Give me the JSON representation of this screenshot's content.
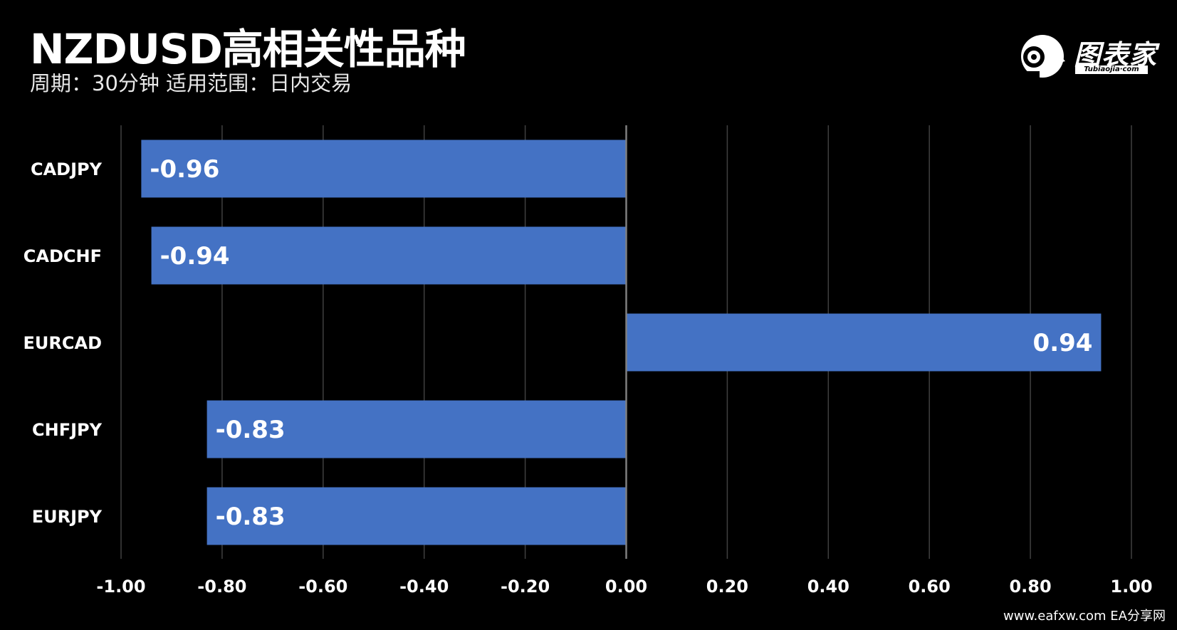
{
  "header": {
    "title": "NZDUSD高相关性品种",
    "subtitle": "周期：30分钟  适用范围：日内交易"
  },
  "logo": {
    "name": "图表家",
    "sub": "Tubiaojia·com",
    "icon": "robot-head-icon"
  },
  "watermark": "www.eafxw.com   EA分享网",
  "colors": {
    "background": "#000000",
    "bar": "#4472C4",
    "grid": "#404040",
    "zero_line": "#7f7f7f",
    "text": "#ffffff"
  },
  "chart_data": {
    "type": "bar",
    "orientation": "horizontal",
    "categories": [
      "CADJPY",
      "CADCHF",
      "EURCAD",
      "CHFJPY",
      "EURJPY"
    ],
    "values": [
      -0.96,
      -0.94,
      0.94,
      -0.83,
      -0.83
    ],
    "data_labels": [
      "-0.96",
      "-0.94",
      "0.94",
      "-0.83",
      "-0.83"
    ],
    "xlim": [
      -1.0,
      1.0
    ],
    "x_ticks": [
      -1.0,
      -0.8,
      -0.6,
      -0.4,
      -0.2,
      0.0,
      0.2,
      0.4,
      0.6,
      0.8,
      1.0
    ],
    "x_tick_labels": [
      "-1.00",
      "-0.80",
      "-0.60",
      "-0.40",
      "-0.20",
      "0.00",
      "0.20",
      "0.40",
      "0.60",
      "0.80",
      "1.00"
    ],
    "grid": true,
    "legend": "none",
    "xlabel": "",
    "ylabel": ""
  }
}
